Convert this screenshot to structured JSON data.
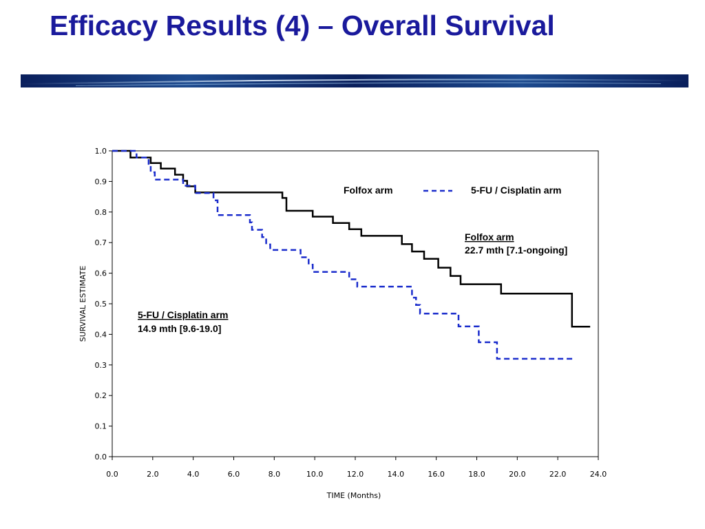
{
  "slide": {
    "title": "Efficacy Results (4) – Overall Survival"
  },
  "colors": {
    "title": "#1a1a9c",
    "folfox": "#000000",
    "cisplatin": "#1a2ccc",
    "band_dark": "#0a1f5c",
    "band_light": "#b8d6f0"
  },
  "chart_data": {
    "type": "line",
    "title": "",
    "xlabel": "TIME (Months)",
    "ylabel": "SURVIVAL ESTIMATE",
    "xlim": [
      0,
      24
    ],
    "ylim": [
      0,
      1
    ],
    "x_ticks": [
      "0.0",
      "2.0",
      "4.0",
      "6.0",
      "8.0",
      "10.0",
      "12.0",
      "14.0",
      "16.0",
      "18.0",
      "20.0",
      "22.0",
      "24.0"
    ],
    "y_ticks": [
      "0.0",
      "0.1",
      "0.2",
      "0.3",
      "0.4",
      "0.5",
      "0.6",
      "0.7",
      "0.8",
      "0.9",
      "1.0"
    ],
    "grid": false,
    "legend_position": "top-right",
    "series": [
      {
        "name": "Folfox arm",
        "style": "solid",
        "color": "#000000",
        "steps": [
          [
            0.0,
            1.0
          ],
          [
            0.9,
            0.978
          ],
          [
            1.9,
            0.96
          ],
          [
            2.4,
            0.942
          ],
          [
            3.1,
            0.922
          ],
          [
            3.5,
            0.902
          ],
          [
            3.7,
            0.884
          ],
          [
            4.1,
            0.864
          ],
          [
            8.4,
            0.846
          ],
          [
            8.6,
            0.804
          ],
          [
            9.9,
            0.785
          ],
          [
            10.9,
            0.764
          ],
          [
            11.7,
            0.744
          ],
          [
            12.3,
            0.722
          ],
          [
            14.3,
            0.695
          ],
          [
            14.8,
            0.671
          ],
          [
            15.4,
            0.647
          ],
          [
            16.1,
            0.618
          ],
          [
            16.7,
            0.591
          ],
          [
            17.2,
            0.564
          ],
          [
            19.2,
            0.533
          ],
          [
            22.7,
            0.425
          ],
          [
            23.6,
            0.425
          ]
        ]
      },
      {
        "name": "5-FU / Cisplatin arm",
        "style": "dashed",
        "color": "#1a2ccc",
        "steps": [
          [
            0.0,
            1.0
          ],
          [
            1.2,
            0.978
          ],
          [
            1.8,
            0.954
          ],
          [
            1.9,
            0.93
          ],
          [
            2.1,
            0.906
          ],
          [
            3.5,
            0.886
          ],
          [
            4.1,
            0.862
          ],
          [
            5.0,
            0.838
          ],
          [
            5.2,
            0.79
          ],
          [
            6.8,
            0.766
          ],
          [
            6.9,
            0.742
          ],
          [
            7.4,
            0.718
          ],
          [
            7.6,
            0.694
          ],
          [
            7.8,
            0.676
          ],
          [
            9.3,
            0.652
          ],
          [
            9.7,
            0.628
          ],
          [
            9.9,
            0.604
          ],
          [
            11.7,
            0.58
          ],
          [
            12.1,
            0.556
          ],
          [
            14.8,
            0.52
          ],
          [
            15.0,
            0.496
          ],
          [
            15.2,
            0.468
          ],
          [
            17.1,
            0.426
          ],
          [
            18.1,
            0.374
          ],
          [
            19.0,
            0.32
          ],
          [
            22.8,
            0.32
          ]
        ]
      }
    ],
    "annotations": [
      {
        "series": "Folfox arm",
        "heading": "Folfox arm",
        "text": "22.7 mth [7.1-ongoing]"
      },
      {
        "series": "5-FU / Cisplatin arm",
        "heading": "5-FU / Cisplatin arm",
        "text": "14.9 mth [9.6-19.0]"
      }
    ]
  }
}
